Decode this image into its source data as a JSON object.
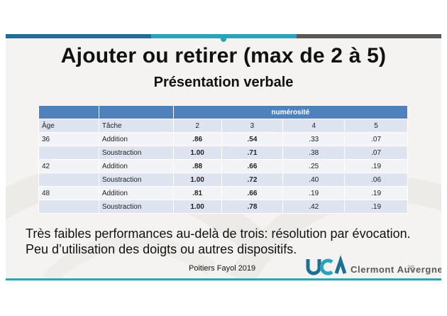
{
  "slide": {
    "title": "Ajouter ou retirer (max de 2 à 5)",
    "subtitle": "Présentation verbale",
    "table": {
      "group_header": "numérosité",
      "columns": [
        "Âge",
        "Tâche",
        "2",
        "3",
        "4",
        "5"
      ],
      "rows": [
        {
          "age": "36",
          "task": "Addition",
          "v2": ".86",
          "v3": ".54",
          "v4": ".33",
          "v5": ".07"
        },
        {
          "age": "",
          "task": "Soustraction",
          "v2": "1.00",
          "v3": ".71",
          "v4": ".38",
          "v5": ".07"
        },
        {
          "age": "42",
          "task": "Addition",
          "v2": ".88",
          "v3": ".66",
          "v4": ".25",
          "v5": ".19"
        },
        {
          "age": "",
          "task": "Soustraction",
          "v2": "1.00",
          "v3": ".72",
          "v4": ".40",
          "v5": ".06"
        },
        {
          "age": "48",
          "task": "Addition",
          "v2": ".81",
          "v3": ".66",
          "v4": ".19",
          "v5": ".19"
        },
        {
          "age": "",
          "task": "Soustraction",
          "v2": "1.00",
          "v3": ".78",
          "v4": ".42",
          "v5": ".19"
        }
      ]
    },
    "body_text": "Très faibles performances au-delà de trois: résolution par évocation. Peu d’utilisation des doigts ou autres dispositifs.",
    "footer_credit": "Poitiers Fayol 2019",
    "logo_text": "Clermont Auvergne",
    "page_number": "38",
    "colors": {
      "bar_dark_blue": "#1f6f94",
      "bar_teal": "#2aa3b8",
      "bar_gray": "#595959",
      "table_header": "#4f81bd",
      "row_band": "#dde4ef"
    }
  }
}
